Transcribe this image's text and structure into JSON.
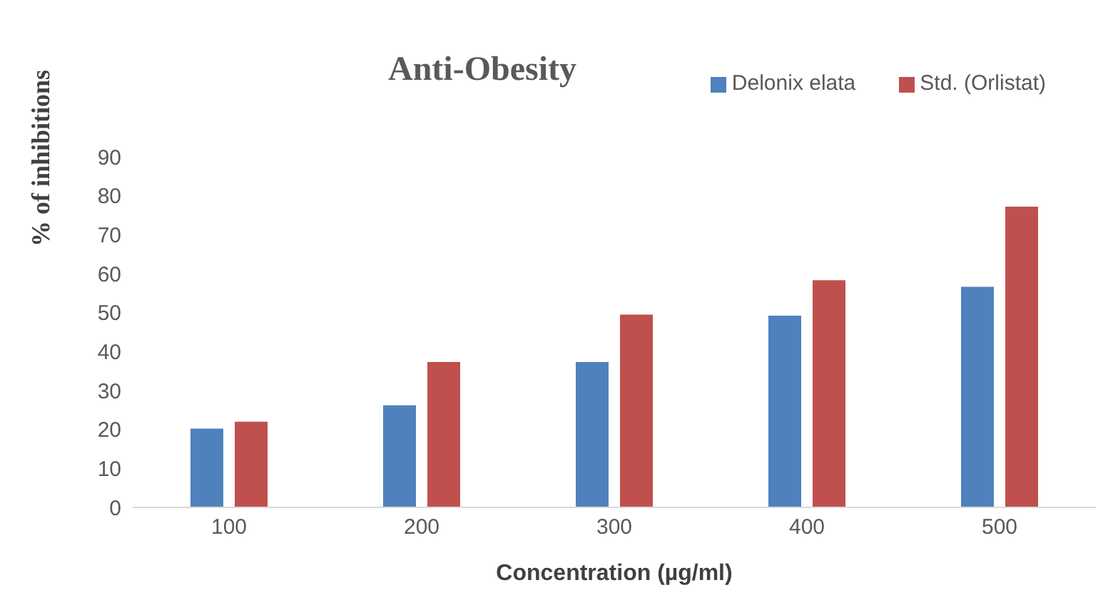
{
  "chart_data": {
    "type": "bar",
    "title": "Anti-Obesity",
    "xlabel": "Concentration (µg/ml)",
    "ylabel": "% of inhibitions",
    "categories": [
      "100",
      "200",
      "300",
      "400",
      "500"
    ],
    "series": [
      {
        "name": "Delonix elata",
        "color": "#4f81bd",
        "values": [
          20.2,
          26.2,
          37.3,
          49.2,
          56.6
        ]
      },
      {
        "name": "Std. (Orlistat)",
        "color": "#c0504d",
        "values": [
          22,
          37.3,
          49.5,
          58.3,
          77.2
        ]
      }
    ],
    "ylim": [
      0,
      90
    ],
    "yticks": [
      0,
      10,
      20,
      30,
      40,
      50,
      60,
      70,
      80,
      90
    ],
    "grid": false,
    "legend": "top right"
  }
}
